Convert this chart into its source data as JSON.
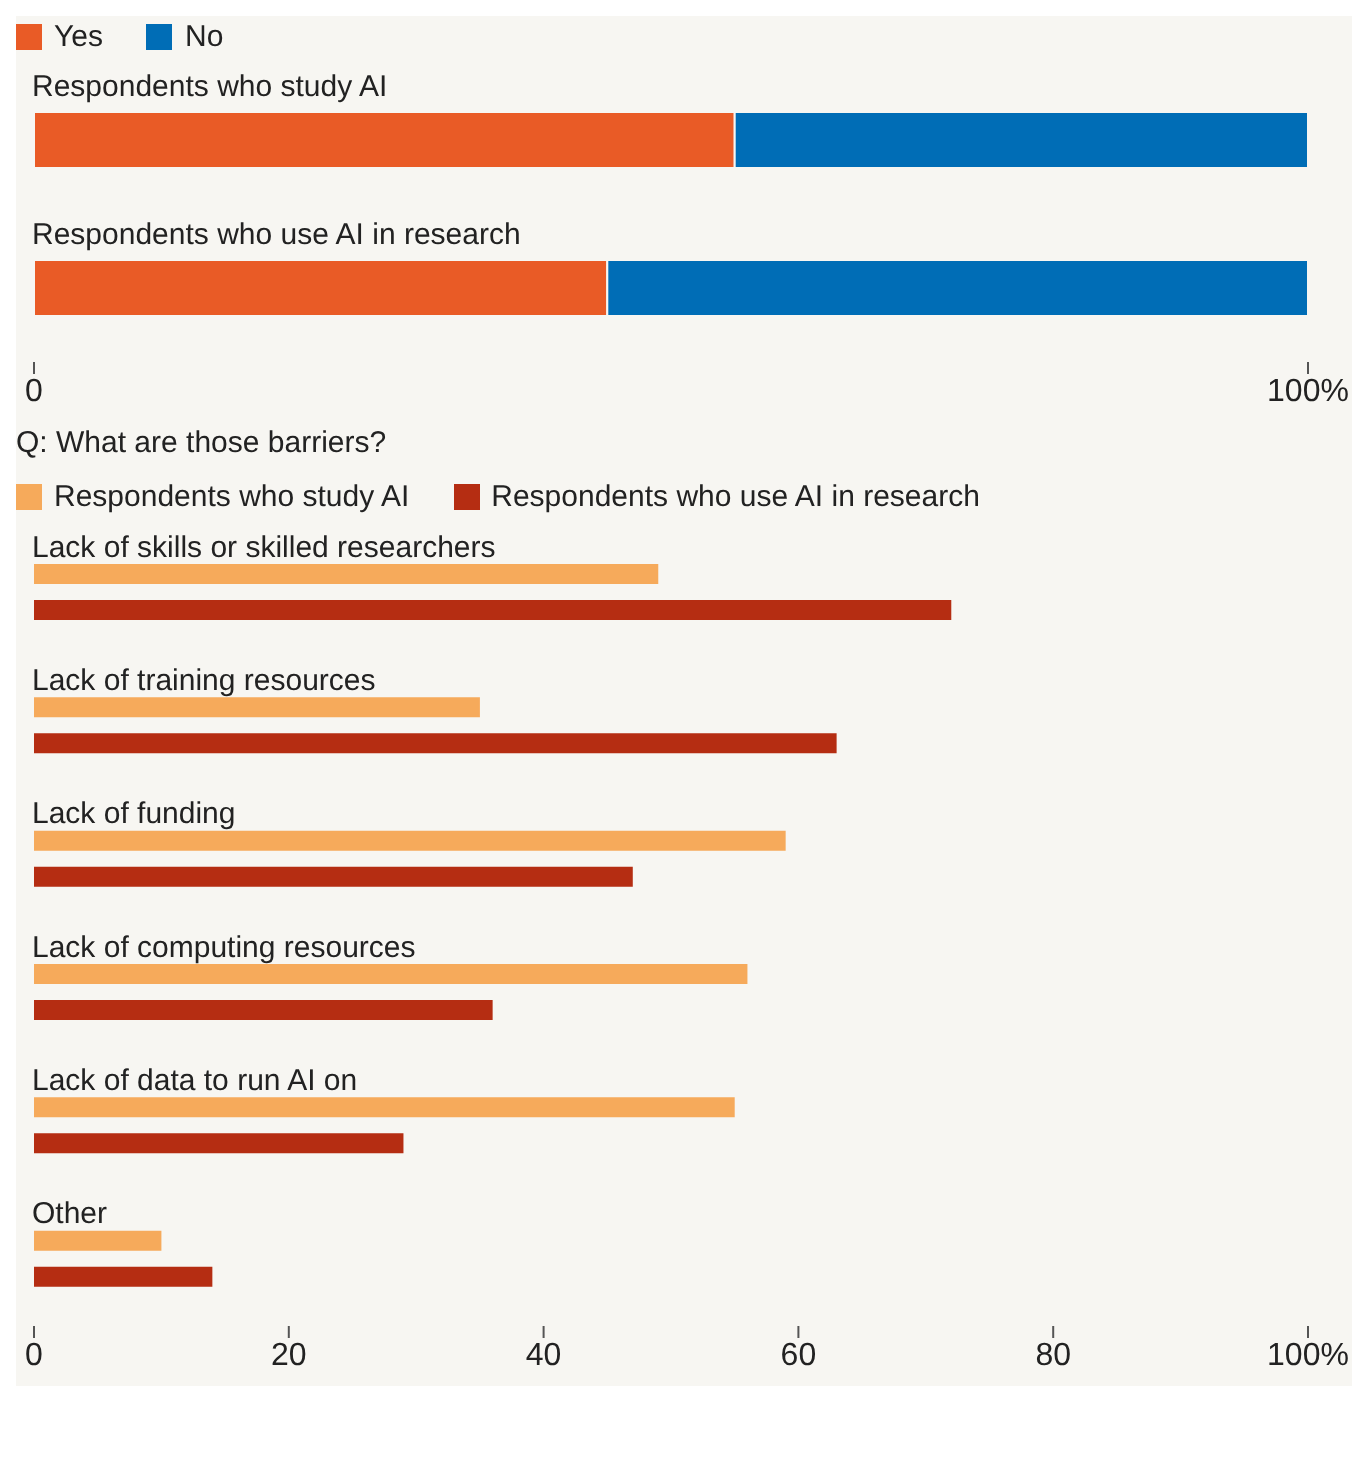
{
  "chart_data": [
    {
      "type": "bar",
      "orientation": "horizontal",
      "stacked": true,
      "categories": [
        "Respondents who study AI",
        "Respondents who use AI in research"
      ],
      "series": [
        {
          "name": "Yes",
          "color": "#e95b26",
          "values": [
            55,
            45
          ]
        },
        {
          "name": "No",
          "color": "#006db6",
          "values": [
            45,
            55
          ]
        }
      ],
      "xlim": [
        0,
        100
      ],
      "xticks": [
        0,
        {
          "value": 100,
          "label": "100%"
        }
      ],
      "grid": false,
      "legend": "top left"
    },
    {
      "type": "bar",
      "orientation": "horizontal",
      "title": "Q: What are those barriers?",
      "categories": [
        "Lack of skills or skilled researchers",
        "Lack of training resources",
        "Lack of funding",
        "Lack of computing resources",
        "Lack of data to run AI on",
        "Other"
      ],
      "series": [
        {
          "name": "Respondents who study AI",
          "color": "#f6aa5b",
          "values": [
            49,
            35,
            59,
            56,
            55,
            10
          ]
        },
        {
          "name": "Respondents who use AI in research",
          "color": "#b52d12",
          "values": [
            72,
            63,
            47,
            36,
            29,
            14
          ]
        }
      ],
      "xlim": [
        0,
        100
      ],
      "xticks": [
        0,
        20,
        40,
        60,
        80,
        {
          "value": 100,
          "label": "100%"
        }
      ],
      "grid": false,
      "legend": "top left"
    }
  ]
}
